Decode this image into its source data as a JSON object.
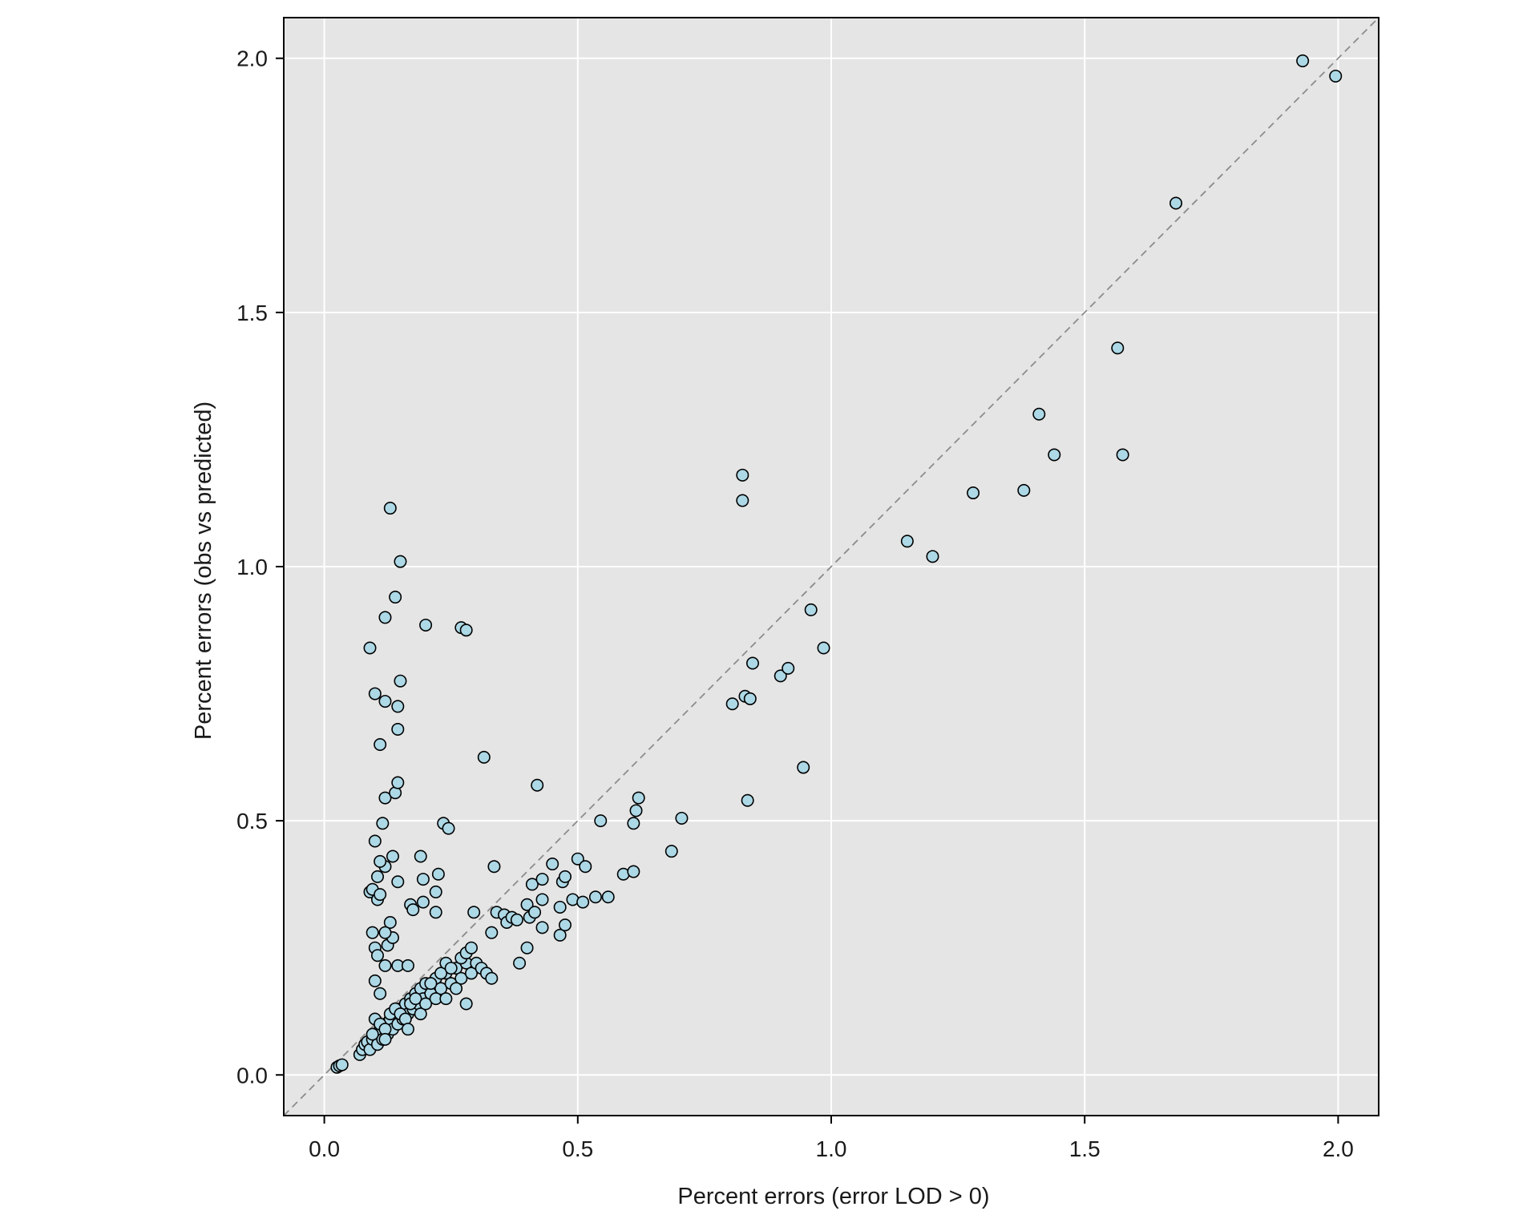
{
  "colors": {
    "panel_background": "#e5e5e5",
    "grid": "#ffffff",
    "point_fill": "#add8e6",
    "point_stroke": "#000000",
    "reference_line": "#8c8c8c",
    "frame": "#000000"
  },
  "chart_data": {
    "type": "scatter",
    "title": "",
    "xlabel": "Percent errors (error LOD > 0)",
    "ylabel": "Percent errors (obs vs predicted)",
    "xlim": [
      -0.08,
      2.08
    ],
    "ylim": [
      -0.08,
      2.08
    ],
    "xticks": [
      0.0,
      0.5,
      1.0,
      1.5,
      2.0
    ],
    "yticks": [
      0.0,
      0.5,
      1.0,
      1.5,
      2.0
    ],
    "xtick_labels": [
      "0.0",
      "0.5",
      "1.0",
      "1.5",
      "2.0"
    ],
    "ytick_labels": [
      "0.0",
      "0.5",
      "1.0",
      "1.5",
      "2.0"
    ],
    "grid": true,
    "reference_line": "y = x (dashed)",
    "series": [
      {
        "points": [
          [
            0.025,
            0.015
          ],
          [
            0.03,
            0.018
          ],
          [
            0.035,
            0.02
          ],
          [
            0.07,
            0.04
          ],
          [
            0.075,
            0.05
          ],
          [
            0.08,
            0.06
          ],
          [
            0.085,
            0.065
          ],
          [
            0.09,
            0.05
          ],
          [
            0.095,
            0.07
          ],
          [
            0.1,
            0.08
          ],
          [
            0.105,
            0.06
          ],
          [
            0.11,
            0.09
          ],
          [
            0.115,
            0.07
          ],
          [
            0.12,
            0.1
          ],
          [
            0.125,
            0.08
          ],
          [
            0.13,
            0.11
          ],
          [
            0.135,
            0.09
          ],
          [
            0.14,
            0.12
          ],
          [
            0.145,
            0.1
          ],
          [
            0.15,
            0.13
          ],
          [
            0.155,
            0.11
          ],
          [
            0.16,
            0.14
          ],
          [
            0.165,
            0.12
          ],
          [
            0.17,
            0.15
          ],
          [
            0.175,
            0.13
          ],
          [
            0.18,
            0.16
          ],
          [
            0.185,
            0.14
          ],
          [
            0.19,
            0.17
          ],
          [
            0.195,
            0.15
          ],
          [
            0.2,
            0.18
          ],
          [
            0.21,
            0.16
          ],
          [
            0.22,
            0.19
          ],
          [
            0.23,
            0.17
          ],
          [
            0.24,
            0.2
          ],
          [
            0.25,
            0.18
          ],
          [
            0.26,
            0.21
          ],
          [
            0.27,
            0.19
          ],
          [
            0.28,
            0.22
          ],
          [
            0.29,
            0.2
          ],
          [
            0.3,
            0.22
          ],
          [
            0.31,
            0.21
          ],
          [
            0.32,
            0.2
          ],
          [
            0.33,
            0.19
          ],
          [
            0.1,
            0.11
          ],
          [
            0.11,
            0.1
          ],
          [
            0.12,
            0.09
          ],
          [
            0.13,
            0.12
          ],
          [
            0.14,
            0.13
          ],
          [
            0.15,
            0.12
          ],
          [
            0.16,
            0.11
          ],
          [
            0.17,
            0.14
          ],
          [
            0.18,
            0.15
          ],
          [
            0.19,
            0.12
          ],
          [
            0.2,
            0.14
          ],
          [
            0.21,
            0.18
          ],
          [
            0.22,
            0.15
          ],
          [
            0.23,
            0.2
          ],
          [
            0.24,
            0.22
          ],
          [
            0.25,
            0.21
          ],
          [
            0.26,
            0.17
          ],
          [
            0.27,
            0.23
          ],
          [
            0.28,
            0.24
          ],
          [
            0.29,
            0.25
          ],
          [
            0.24,
            0.15
          ],
          [
            0.28,
            0.14
          ],
          [
            0.095,
            0.08
          ],
          [
            0.12,
            0.07
          ],
          [
            0.165,
            0.09
          ],
          [
            0.1,
            0.185
          ],
          [
            0.11,
            0.16
          ],
          [
            0.12,
            0.215
          ],
          [
            0.145,
            0.215
          ],
          [
            0.165,
            0.215
          ],
          [
            0.095,
            0.28
          ],
          [
            0.1,
            0.25
          ],
          [
            0.105,
            0.235
          ],
          [
            0.125,
            0.255
          ],
          [
            0.135,
            0.27
          ],
          [
            0.13,
            0.3
          ],
          [
            0.12,
            0.28
          ],
          [
            0.09,
            0.36
          ],
          [
            0.095,
            0.365
          ],
          [
            0.105,
            0.345
          ],
          [
            0.11,
            0.355
          ],
          [
            0.105,
            0.39
          ],
          [
            0.12,
            0.41
          ],
          [
            0.11,
            0.42
          ],
          [
            0.135,
            0.43
          ],
          [
            0.145,
            0.38
          ],
          [
            0.1,
            0.46
          ],
          [
            0.115,
            0.495
          ],
          [
            0.12,
            0.545
          ],
          [
            0.14,
            0.555
          ],
          [
            0.145,
            0.575
          ],
          [
            0.11,
            0.65
          ],
          [
            0.145,
            0.68
          ],
          [
            0.12,
            0.735
          ],
          [
            0.145,
            0.725
          ],
          [
            0.1,
            0.75
          ],
          [
            0.15,
            0.775
          ],
          [
            0.09,
            0.84
          ],
          [
            0.12,
            0.9
          ],
          [
            0.14,
            0.94
          ],
          [
            0.15,
            1.01
          ],
          [
            0.13,
            1.115
          ],
          [
            0.17,
            0.335
          ],
          [
            0.175,
            0.325
          ],
          [
            0.195,
            0.34
          ],
          [
            0.195,
            0.385
          ],
          [
            0.19,
            0.43
          ],
          [
            0.22,
            0.36
          ],
          [
            0.225,
            0.395
          ],
          [
            0.22,
            0.32
          ],
          [
            0.235,
            0.495
          ],
          [
            0.245,
            0.485
          ],
          [
            0.2,
            0.885
          ],
          [
            0.27,
            0.88
          ],
          [
            0.28,
            0.875
          ],
          [
            0.315,
            0.625
          ],
          [
            0.295,
            0.32
          ],
          [
            0.33,
            0.28
          ],
          [
            0.335,
            0.41
          ],
          [
            0.34,
            0.32
          ],
          [
            0.355,
            0.315
          ],
          [
            0.36,
            0.3
          ],
          [
            0.37,
            0.31
          ],
          [
            0.38,
            0.305
          ],
          [
            0.385,
            0.22
          ],
          [
            0.4,
            0.25
          ],
          [
            0.4,
            0.335
          ],
          [
            0.405,
            0.31
          ],
          [
            0.41,
            0.375
          ],
          [
            0.415,
            0.32
          ],
          [
            0.43,
            0.345
          ],
          [
            0.43,
            0.385
          ],
          [
            0.43,
            0.29
          ],
          [
            0.45,
            0.415
          ],
          [
            0.465,
            0.275
          ],
          [
            0.465,
            0.33
          ],
          [
            0.47,
            0.38
          ],
          [
            0.475,
            0.39
          ],
          [
            0.475,
            0.295
          ],
          [
            0.49,
            0.345
          ],
          [
            0.5,
            0.425
          ],
          [
            0.51,
            0.34
          ],
          [
            0.515,
            0.41
          ],
          [
            0.535,
            0.35
          ],
          [
            0.545,
            0.5
          ],
          [
            0.56,
            0.35
          ],
          [
            0.42,
            0.57
          ],
          [
            0.59,
            0.395
          ],
          [
            0.61,
            0.4
          ],
          [
            0.61,
            0.495
          ],
          [
            0.615,
            0.52
          ],
          [
            0.62,
            0.545
          ],
          [
            0.685,
            0.44
          ],
          [
            0.705,
            0.505
          ],
          [
            0.805,
            0.73
          ],
          [
            0.825,
            1.18
          ],
          [
            0.825,
            1.13
          ],
          [
            0.83,
            0.745
          ],
          [
            0.835,
            0.54
          ],
          [
            0.84,
            0.74
          ],
          [
            0.845,
            0.81
          ],
          [
            0.9,
            0.785
          ],
          [
            0.915,
            0.8
          ],
          [
            0.945,
            0.605
          ],
          [
            0.96,
            0.915
          ],
          [
            0.985,
            0.84
          ],
          [
            1.15,
            1.05
          ],
          [
            1.2,
            1.02
          ],
          [
            1.28,
            1.145
          ],
          [
            1.38,
            1.15
          ],
          [
            1.41,
            1.3
          ],
          [
            1.44,
            1.22
          ],
          [
            1.565,
            1.43
          ],
          [
            1.575,
            1.22
          ],
          [
            1.68,
            1.715
          ],
          [
            1.93,
            1.995
          ],
          [
            1.995,
            1.965
          ]
        ]
      }
    ]
  }
}
